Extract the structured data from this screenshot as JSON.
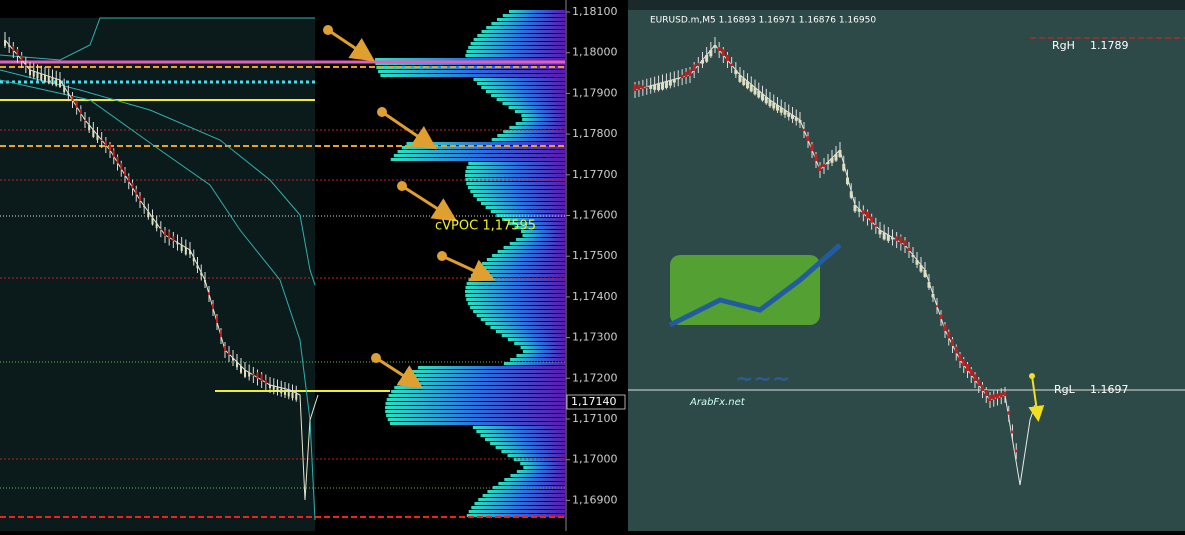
{
  "left_panel": {
    "price_axis": [
      "1,18100",
      "1,18000",
      "1,17900",
      "1,17800",
      "1,17700",
      "1,17600",
      "1,17500",
      "1,17400",
      "1,17300",
      "1,17200",
      "1,17100",
      "1,17000",
      "1,16900"
    ],
    "current_price": "1,17140",
    "cvpoc_label": "cVPOC 1,17595"
  },
  "right_panel": {
    "symbol_info": "EURUSD.m,M5 1.16893 1.16971 1.16876 1.16950",
    "rgh_label": "RgH",
    "rgh_value": "1.1789",
    "rgl_label": "RgL",
    "rgl_value": "1.1697",
    "watermark": "ArabFx.net"
  }
}
